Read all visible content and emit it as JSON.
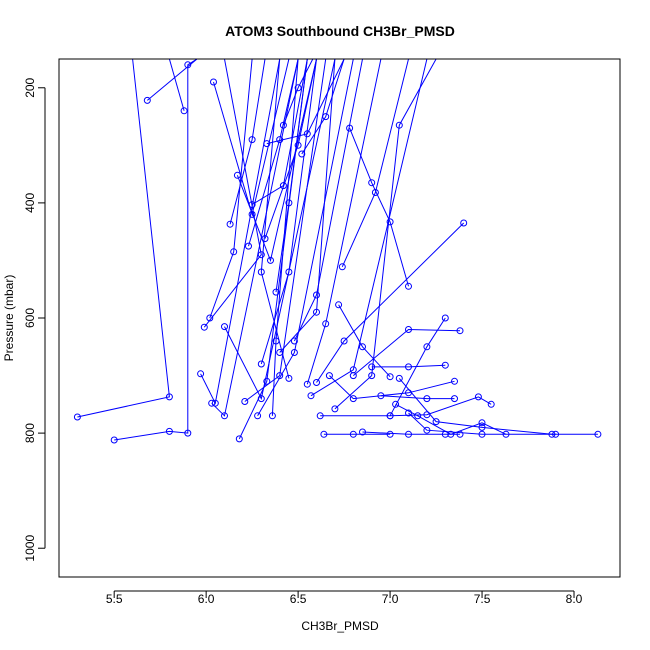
{
  "chart_data": {
    "type": "line",
    "title": "ATOM3 Southbound CH3Br_PMSD",
    "xlabel": "CH3Br_PMSD",
    "ylabel": "Pressure (mbar)",
    "xlim": [
      5.2,
      8.25
    ],
    "ylim": [
      1050,
      150
    ],
    "y_reversed": true,
    "grid": false,
    "legend": "none",
    "series_color": "#0000ff",
    "x_ticks": [
      5.5,
      6.0,
      6.5,
      7.0,
      7.5,
      8.0
    ],
    "x_tick_labels": [
      "5.5",
      "6.0",
      "6.5",
      "7.0",
      "7.5",
      "8.0"
    ],
    "y_ticks": [
      200,
      400,
      600,
      800,
      1000
    ],
    "y_tick_labels": [
      "200",
      "400",
      "600",
      "800",
      "1000"
    ],
    "series": [
      {
        "points": [
          [
            5.3,
            772
          ],
          [
            5.8,
            737
          ],
          [
            5.6,
            150
          ]
        ]
      },
      {
        "points": [
          [
            5.5,
            812
          ],
          [
            5.8,
            797
          ],
          [
            5.9,
            800
          ],
          [
            5.9,
            160
          ],
          [
            5.95,
            150
          ]
        ]
      },
      {
        "points": [
          [
            5.68,
            222
          ],
          [
            5.95,
            150
          ]
        ]
      },
      {
        "points": [
          [
            5.88,
            240
          ],
          [
            5.8,
            150
          ]
        ]
      },
      {
        "points": [
          [
            5.97,
            697
          ],
          [
            6.05,
            748
          ],
          [
            6.4,
            150
          ]
        ]
      },
      {
        "points": [
          [
            5.99,
            616
          ],
          [
            6.3,
            490
          ],
          [
            6.1,
            150
          ]
        ]
      },
      {
        "points": [
          [
            6.02,
            600
          ],
          [
            6.15,
            485
          ],
          [
            6.25,
            150
          ]
        ]
      },
      {
        "points": [
          [
            6.03,
            748
          ],
          [
            6.1,
            770
          ],
          [
            6.5,
            150
          ]
        ]
      },
      {
        "points": [
          [
            6.04,
            190
          ],
          [
            6.25,
            420
          ],
          [
            6.45,
            150
          ]
        ]
      },
      {
        "points": [
          [
            6.1,
            615
          ],
          [
            6.3,
            740
          ],
          [
            6.7,
            150
          ]
        ]
      },
      {
        "points": [
          [
            6.13,
            437
          ],
          [
            6.25,
            290
          ],
          [
            6.32,
            150
          ]
        ]
      },
      {
        "points": [
          [
            6.17,
            352
          ],
          [
            6.35,
            500
          ],
          [
            6.6,
            150
          ]
        ]
      },
      {
        "points": [
          [
            6.18,
            810
          ],
          [
            6.33,
            710
          ],
          [
            6.55,
            150
          ]
        ]
      },
      {
        "points": [
          [
            6.21,
            745
          ],
          [
            6.4,
            700
          ],
          [
            6.65,
            150
          ]
        ]
      },
      {
        "points": [
          [
            6.23,
            475
          ],
          [
            6.4,
            290
          ],
          [
            6.5,
            150
          ]
        ]
      },
      {
        "points": [
          [
            6.25,
            403
          ],
          [
            6.42,
            370
          ],
          [
            6.55,
            150
          ]
        ]
      },
      {
        "points": [
          [
            6.28,
            770
          ],
          [
            6.48,
            660
          ],
          [
            6.8,
            150
          ]
        ]
      },
      {
        "points": [
          [
            6.3,
            680
          ],
          [
            6.45,
            520
          ],
          [
            6.6,
            150
          ]
        ]
      },
      {
        "points": [
          [
            6.32,
            462
          ],
          [
            6.5,
            300
          ],
          [
            6.6,
            150
          ]
        ]
      },
      {
        "points": [
          [
            6.33,
            297
          ],
          [
            6.55,
            280
          ],
          [
            6.75,
            150
          ]
        ]
      },
      {
        "points": [
          [
            6.36,
            770
          ],
          [
            6.38,
            640
          ],
          [
            6.5,
            150
          ]
        ]
      },
      {
        "points": [
          [
            6.38,
            555
          ],
          [
            6.45,
            400
          ],
          [
            6.55,
            150
          ]
        ]
      },
      {
        "points": [
          [
            6.4,
            660
          ],
          [
            6.6,
            590
          ],
          [
            6.7,
            150
          ]
        ]
      },
      {
        "points": [
          [
            6.42,
            265
          ],
          [
            6.5,
            200
          ],
          [
            6.58,
            150
          ]
        ]
      },
      {
        "points": [
          [
            6.45,
            705
          ],
          [
            6.3,
            520
          ],
          [
            6.4,
            150
          ]
        ]
      },
      {
        "points": [
          [
            6.48,
            640
          ],
          [
            6.6,
            560
          ],
          [
            6.85,
            150
          ]
        ]
      },
      {
        "points": [
          [
            6.52,
            315
          ],
          [
            6.65,
            250
          ],
          [
            6.75,
            150
          ]
        ]
      },
      {
        "points": [
          [
            6.55,
            715
          ],
          [
            6.65,
            610
          ],
          [
            6.95,
            150
          ]
        ]
      },
      {
        "points": [
          [
            6.57,
            735
          ],
          [
            6.8,
            690
          ],
          [
            7.2,
            150
          ]
        ]
      },
      {
        "points": [
          [
            6.6,
            712
          ],
          [
            6.75,
            640
          ],
          [
            7.4,
            435
          ]
        ]
      },
      {
        "points": [
          [
            6.62,
            770
          ],
          [
            7.0,
            770
          ],
          [
            7.2,
            650
          ],
          [
            7.3,
            600
          ]
        ]
      },
      {
        "points": [
          [
            6.64,
            802
          ],
          [
            6.8,
            802
          ],
          [
            7.0,
            802
          ]
        ]
      },
      {
        "points": [
          [
            6.67,
            700
          ],
          [
            6.8,
            740
          ],
          [
            7.1,
            730
          ],
          [
            7.35,
            710
          ]
        ]
      },
      {
        "points": [
          [
            6.7,
            758
          ],
          [
            6.9,
            700
          ],
          [
            7.05,
            265
          ],
          [
            7.25,
            150
          ]
        ]
      },
      {
        "points": [
          [
            6.72,
            577
          ],
          [
            6.85,
            650
          ],
          [
            7.0,
            702
          ]
        ]
      },
      {
        "points": [
          [
            6.74,
            511
          ],
          [
            6.92,
            382
          ],
          [
            7.1,
            150
          ]
        ]
      },
      {
        "points": [
          [
            6.78,
            270
          ],
          [
            6.9,
            365
          ],
          [
            7.0,
            433
          ],
          [
            7.1,
            545
          ]
        ]
      },
      {
        "points": [
          [
            6.8,
            700
          ],
          [
            7.1,
            620
          ],
          [
            7.38,
            622
          ]
        ]
      },
      {
        "points": [
          [
            6.85,
            798
          ],
          [
            7.1,
            802
          ],
          [
            7.3,
            802
          ],
          [
            7.38,
            802
          ]
        ]
      },
      {
        "points": [
          [
            6.9,
            685
          ],
          [
            7.1,
            685
          ],
          [
            7.3,
            682
          ]
        ]
      },
      {
        "points": [
          [
            6.95,
            735
          ],
          [
            7.2,
            740
          ],
          [
            7.35,
            740
          ]
        ]
      },
      {
        "points": [
          [
            7.0,
            770
          ],
          [
            7.2,
            768
          ],
          [
            7.48,
            737
          ],
          [
            7.55,
            750
          ]
        ]
      },
      {
        "points": [
          [
            7.03,
            750
          ],
          [
            7.15,
            770
          ],
          [
            7.33,
            802
          ],
          [
            7.5,
            782
          ],
          [
            7.63,
            802
          ]
        ]
      },
      {
        "points": [
          [
            7.05,
            705
          ],
          [
            7.25,
            780
          ],
          [
            7.5,
            790
          ],
          [
            7.88,
            802
          ],
          [
            8.13,
            802
          ]
        ]
      },
      {
        "points": [
          [
            7.1,
            765
          ],
          [
            7.2,
            795
          ],
          [
            7.5,
            802
          ],
          [
            7.9,
            802
          ]
        ]
      }
    ]
  }
}
